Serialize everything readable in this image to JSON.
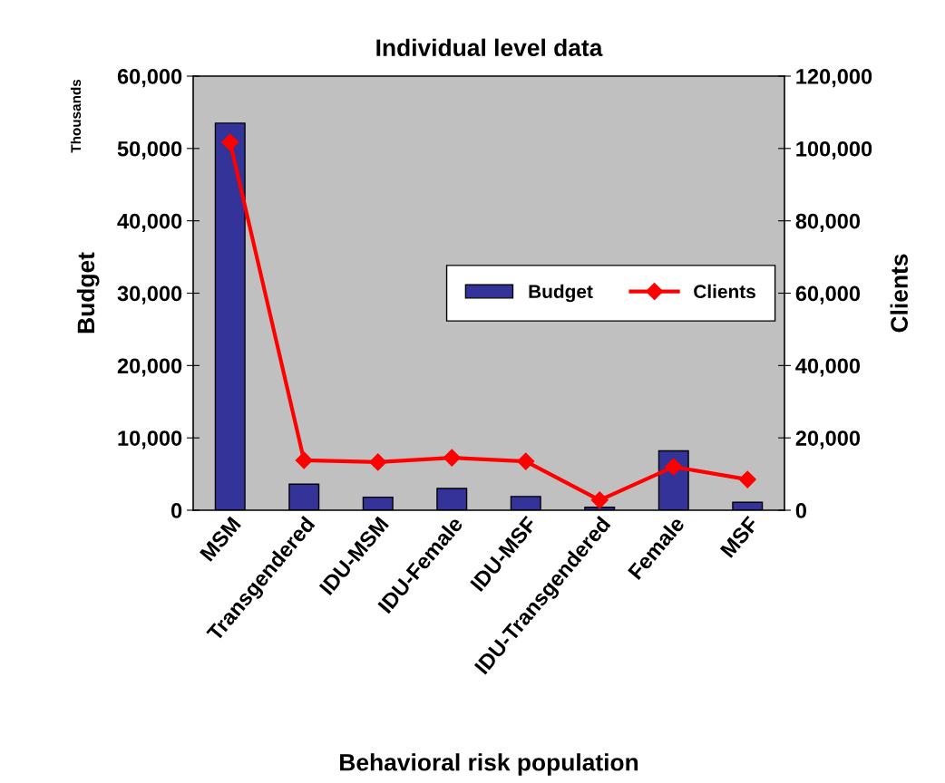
{
  "chart_data": {
    "type": "bar",
    "title": "Individual level data",
    "xlabel": "Behavioral risk population",
    "ylabel": "Budget",
    "y2label": "Clients",
    "annotations": [
      "Thousands"
    ],
    "categories": [
      "MSM",
      "Transgendered",
      "IDU-MSM",
      "IDU-Female",
      "IDU-MSF",
      "IDU-Transgendered",
      "Female",
      "MSF"
    ],
    "series": [
      {
        "name": "Budget",
        "color": "#333399",
        "values": [
          53500,
          3600,
          1800,
          3000,
          1900,
          400,
          8200,
          1100
        ]
      },
      {
        "name": "Clients",
        "type": "line",
        "axis": "y2",
        "color": "#ff0000",
        "marker": "diamond",
        "values": [
          101700,
          13800,
          13300,
          14500,
          13500,
          2800,
          12000,
          8500
        ]
      }
    ],
    "ylim": [
      0,
      60000
    ],
    "yticks": [
      {
        "value": 0,
        "label": "0"
      },
      {
        "value": 10000,
        "label": "10,000"
      },
      {
        "value": 20000,
        "label": "20,000"
      },
      {
        "value": 30000,
        "label": "30,000"
      },
      {
        "value": 40000,
        "label": "40,000"
      },
      {
        "value": 50000,
        "label": "50,000"
      },
      {
        "value": 60000,
        "label": "60,000"
      }
    ],
    "y2lim": [
      0,
      120000
    ],
    "y2ticks": [
      {
        "value": 0,
        "label": "0"
      },
      {
        "value": 20000,
        "label": "20,000"
      },
      {
        "value": 40000,
        "label": "40,000"
      },
      {
        "value": 60000,
        "label": "60,000"
      },
      {
        "value": 80000,
        "label": "80,000"
      },
      {
        "value": 100000,
        "label": "100,000"
      },
      {
        "value": 120000,
        "label": "120,000"
      }
    ],
    "grid": false,
    "legend": "center right"
  }
}
